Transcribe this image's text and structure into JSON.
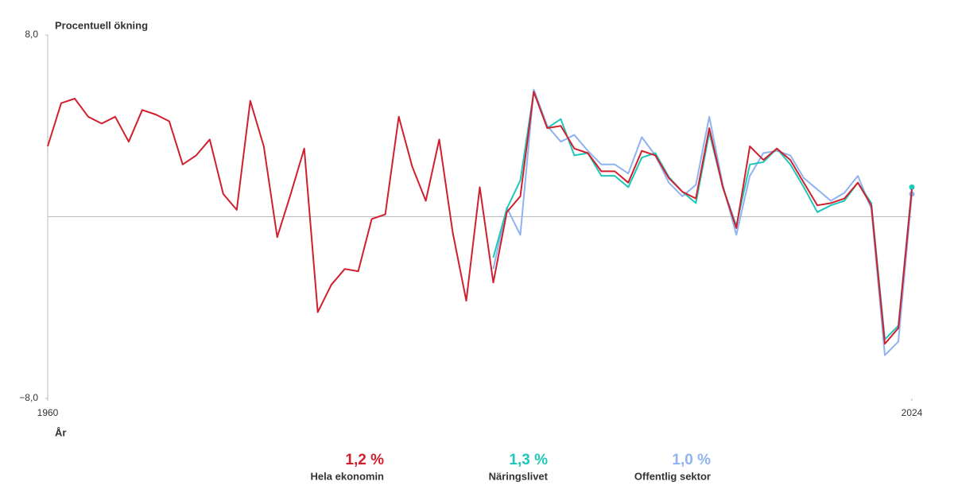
{
  "chart_data": {
    "type": "line",
    "ylabel": "Procentuell ökning",
    "xlabel": "År",
    "x": [
      1960,
      1961,
      1962,
      1963,
      1964,
      1965,
      1966,
      1967,
      1968,
      1969,
      1970,
      1971,
      1972,
      1973,
      1974,
      1975,
      1976,
      1977,
      1978,
      1979,
      1980,
      1981,
      1982,
      1983,
      1984,
      1985,
      1986,
      1987,
      1988,
      1989,
      1990,
      1991,
      1992,
      1993,
      1994,
      1995,
      1996,
      1997,
      1998,
      1999,
      2000,
      2001,
      2002,
      2003,
      2004,
      2005,
      2006,
      2007,
      2008,
      2009,
      2010,
      2011,
      2012,
      2013,
      2014,
      2015,
      2016,
      2017,
      2018,
      2019,
      2020,
      2021,
      2022,
      2023,
      2024
    ],
    "xlim": [
      1960,
      2024
    ],
    "xticks": [
      1960,
      2024
    ],
    "ylim": [
      -8,
      8
    ],
    "yticks": [
      {
        "value": -8,
        "label": "−8,0"
      },
      {
        "value": 8,
        "label": "8,0"
      }
    ],
    "series": [
      {
        "name": "Hela ekonomin",
        "color": "#d0202e",
        "values": [
          3.1,
          5.0,
          5.2,
          4.4,
          4.1,
          4.4,
          3.3,
          4.7,
          4.5,
          4.2,
          2.3,
          2.7,
          3.4,
          1.0,
          0.3,
          5.1,
          3.1,
          -0.9,
          1.0,
          3.0,
          -4.2,
          -3.0,
          -2.3,
          -2.4,
          -0.1,
          0.1,
          4.4,
          2.2,
          0.7,
          3.4,
          -0.7,
          -3.7,
          1.3,
          -2.9,
          0.2,
          0.9,
          5.5,
          3.9,
          4.0,
          3.0,
          2.8,
          2.0,
          2.0,
          1.5,
          2.9,
          2.7,
          1.7,
          1.1,
          0.8,
          3.9,
          1.3,
          -0.5,
          3.1,
          2.5,
          3.0,
          2.5,
          1.5,
          0.5,
          0.6,
          0.8,
          1.5,
          0.5,
          -5.6,
          -4.9,
          1.2
        ],
        "value_labels": [
          null,
          null,
          null,
          null,
          null,
          null,
          null,
          null,
          null,
          null,
          null,
          null,
          null,
          null,
          null,
          null,
          null,
          null,
          null,
          null,
          null,
          null,
          null,
          null,
          null,
          null,
          null,
          null,
          null,
          null,
          null,
          null,
          null,
          null,
          null,
          null,
          null,
          null,
          null,
          null,
          null,
          null,
          null,
          null,
          null,
          null,
          null,
          null,
          null,
          null,
          null,
          null,
          null,
          null,
          null,
          null,
          null,
          null,
          null,
          null,
          null,
          null,
          null,
          null,
          "1,2 %"
        ]
      },
      {
        "name": "Näringslivet",
        "color": "#1ec8b8",
        "values": [
          null,
          null,
          null,
          null,
          null,
          null,
          null,
          null,
          null,
          null,
          null,
          null,
          null,
          null,
          null,
          null,
          null,
          null,
          null,
          null,
          null,
          null,
          null,
          null,
          null,
          null,
          null,
          null,
          null,
          null,
          null,
          null,
          null,
          -1.8,
          0.35,
          1.6,
          5.5,
          3.9,
          4.3,
          2.7,
          2.8,
          1.8,
          1.8,
          1.3,
          2.6,
          2.8,
          1.75,
          1.1,
          0.6,
          3.7,
          1.3,
          -0.4,
          2.3,
          2.4,
          3.0,
          2.3,
          1.3,
          0.2,
          0.5,
          0.7,
          1.5,
          0.6,
          -5.4,
          -4.8,
          1.3
        ],
        "value_labels": [
          null,
          null,
          null,
          null,
          null,
          null,
          null,
          null,
          null,
          null,
          null,
          null,
          null,
          null,
          null,
          null,
          null,
          null,
          null,
          null,
          null,
          null,
          null,
          null,
          null,
          null,
          null,
          null,
          null,
          null,
          null,
          null,
          null,
          null,
          null,
          null,
          null,
          null,
          null,
          null,
          null,
          null,
          null,
          null,
          null,
          null,
          null,
          null,
          null,
          null,
          null,
          null,
          null,
          null,
          null,
          null,
          null,
          null,
          null,
          null,
          null,
          null,
          null,
          null,
          "1,3 %"
        ],
        "end_marker": true
      },
      {
        "name": "Offentlig sektor",
        "color": "#8fb3f0",
        "values": [
          null,
          null,
          null,
          null,
          null,
          null,
          null,
          null,
          null,
          null,
          null,
          null,
          null,
          null,
          null,
          null,
          null,
          null,
          null,
          null,
          null,
          null,
          null,
          null,
          null,
          null,
          null,
          null,
          null,
          null,
          null,
          null,
          null,
          -2.3,
          0.4,
          -0.8,
          5.6,
          4.0,
          3.3,
          3.6,
          2.9,
          2.3,
          2.3,
          1.9,
          3.5,
          2.7,
          1.5,
          0.9,
          1.4,
          4.4,
          1.4,
          -0.8,
          1.8,
          2.8,
          2.9,
          2.7,
          1.7,
          1.2,
          0.7,
          1.05,
          1.8,
          0.35,
          -6.1,
          -5.5,
          1.0
        ],
        "value_labels": [
          null,
          null,
          null,
          null,
          null,
          null,
          null,
          null,
          null,
          null,
          null,
          null,
          null,
          null,
          null,
          null,
          null,
          null,
          null,
          null,
          null,
          null,
          null,
          null,
          null,
          null,
          null,
          null,
          null,
          null,
          null,
          null,
          null,
          null,
          null,
          null,
          null,
          null,
          null,
          null,
          null,
          null,
          null,
          null,
          null,
          null,
          null,
          null,
          null,
          null,
          null,
          null,
          null,
          null,
          null,
          null,
          null,
          null,
          null,
          null,
          null,
          null,
          null,
          null,
          "1,0 %"
        ],
        "end_marker": true
      }
    ]
  }
}
